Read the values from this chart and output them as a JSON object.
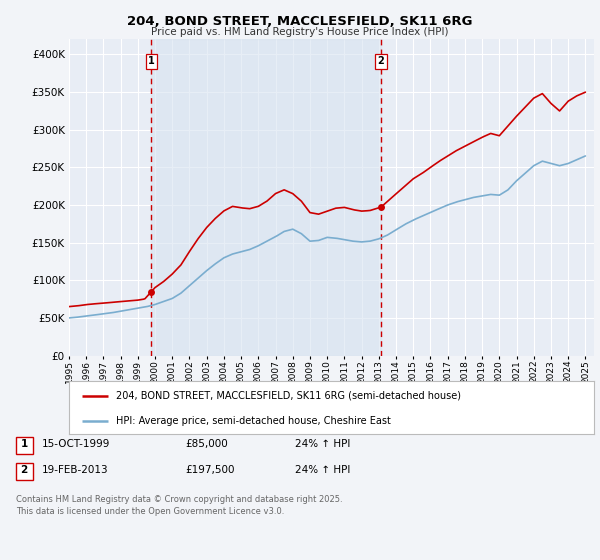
{
  "title": "204, BOND STREET, MACCLESFIELD, SK11 6RG",
  "subtitle": "Price paid vs. HM Land Registry's House Price Index (HPI)",
  "bg_color": "#f2f4f8",
  "plot_bg_color": "#e8edf5",
  "red_color": "#cc0000",
  "blue_color": "#7aadcf",
  "vline_color": "#cc0000",
  "grid_color": "#ffffff",
  "legend1": "204, BOND STREET, MACCLESFIELD, SK11 6RG (semi-detached house)",
  "legend2": "HPI: Average price, semi-detached house, Cheshire East",
  "sale1_date": "15-OCT-1999",
  "sale1_price": "£85,000",
  "sale1_hpi": "24% ↑ HPI",
  "sale1_x": 1999.79,
  "sale1_y": 85000,
  "sale2_date": "19-FEB-2013",
  "sale2_price": "£197,500",
  "sale2_hpi": "24% ↑ HPI",
  "sale2_x": 2013.13,
  "sale2_y": 197500,
  "footer1": "Contains HM Land Registry data © Crown copyright and database right 2025.",
  "footer2": "This data is licensed under the Open Government Licence v3.0.",
  "ylim": [
    0,
    420000
  ],
  "xlim_start": 1995.0,
  "xlim_end": 2025.5,
  "hpi_anchors": [
    [
      1995.0,
      50000
    ],
    [
      1995.5,
      51000
    ],
    [
      1996.0,
      52500
    ],
    [
      1996.5,
      54000
    ],
    [
      1997.0,
      55500
    ],
    [
      1997.5,
      57000
    ],
    [
      1998.0,
      59000
    ],
    [
      1998.5,
      61000
    ],
    [
      1999.0,
      63000
    ],
    [
      1999.5,
      65000
    ],
    [
      2000.0,
      68000
    ],
    [
      2000.5,
      72000
    ],
    [
      2001.0,
      76000
    ],
    [
      2001.5,
      83000
    ],
    [
      2002.0,
      93000
    ],
    [
      2002.5,
      103000
    ],
    [
      2003.0,
      113000
    ],
    [
      2003.5,
      122000
    ],
    [
      2004.0,
      130000
    ],
    [
      2004.5,
      135000
    ],
    [
      2005.0,
      138000
    ],
    [
      2005.5,
      141000
    ],
    [
      2006.0,
      146000
    ],
    [
      2006.5,
      152000
    ],
    [
      2007.0,
      158000
    ],
    [
      2007.5,
      165000
    ],
    [
      2008.0,
      168000
    ],
    [
      2008.5,
      162000
    ],
    [
      2009.0,
      152000
    ],
    [
      2009.5,
      153000
    ],
    [
      2010.0,
      157000
    ],
    [
      2010.5,
      156000
    ],
    [
      2011.0,
      154000
    ],
    [
      2011.5,
      152000
    ],
    [
      2012.0,
      151000
    ],
    [
      2012.5,
      152000
    ],
    [
      2013.0,
      155000
    ],
    [
      2013.5,
      160000
    ],
    [
      2014.0,
      167000
    ],
    [
      2014.5,
      174000
    ],
    [
      2015.0,
      180000
    ],
    [
      2015.5,
      185000
    ],
    [
      2016.0,
      190000
    ],
    [
      2016.5,
      195000
    ],
    [
      2017.0,
      200000
    ],
    [
      2017.5,
      204000
    ],
    [
      2018.0,
      207000
    ],
    [
      2018.5,
      210000
    ],
    [
      2019.0,
      212000
    ],
    [
      2019.5,
      214000
    ],
    [
      2020.0,
      213000
    ],
    [
      2020.5,
      220000
    ],
    [
      2021.0,
      232000
    ],
    [
      2021.5,
      242000
    ],
    [
      2022.0,
      252000
    ],
    [
      2022.5,
      258000
    ],
    [
      2023.0,
      255000
    ],
    [
      2023.5,
      252000
    ],
    [
      2024.0,
      255000
    ],
    [
      2024.5,
      260000
    ],
    [
      2025.0,
      265000
    ]
  ],
  "price_anchors": [
    [
      1995.0,
      65000
    ],
    [
      1995.5,
      66000
    ],
    [
      1996.0,
      67500
    ],
    [
      1996.5,
      68500
    ],
    [
      1997.0,
      69500
    ],
    [
      1997.5,
      70500
    ],
    [
      1998.0,
      71500
    ],
    [
      1998.5,
      72500
    ],
    [
      1999.0,
      73500
    ],
    [
      1999.4,
      75000
    ],
    [
      1999.79,
      85000
    ],
    [
      2000.0,
      90000
    ],
    [
      2000.5,
      98000
    ],
    [
      2001.0,
      108000
    ],
    [
      2001.5,
      120000
    ],
    [
      2002.0,
      138000
    ],
    [
      2002.5,
      155000
    ],
    [
      2003.0,
      170000
    ],
    [
      2003.5,
      182000
    ],
    [
      2004.0,
      192000
    ],
    [
      2004.5,
      198000
    ],
    [
      2005.0,
      196000
    ],
    [
      2005.5,
      195000
    ],
    [
      2006.0,
      198000
    ],
    [
      2006.5,
      205000
    ],
    [
      2007.0,
      215000
    ],
    [
      2007.5,
      220000
    ],
    [
      2008.0,
      215000
    ],
    [
      2008.5,
      205000
    ],
    [
      2009.0,
      190000
    ],
    [
      2009.5,
      188000
    ],
    [
      2010.0,
      192000
    ],
    [
      2010.5,
      196000
    ],
    [
      2011.0,
      197000
    ],
    [
      2011.5,
      194000
    ],
    [
      2012.0,
      192000
    ],
    [
      2012.5,
      193000
    ],
    [
      2013.13,
      197500
    ],
    [
      2013.5,
      205000
    ],
    [
      2014.0,
      215000
    ],
    [
      2014.5,
      225000
    ],
    [
      2015.0,
      235000
    ],
    [
      2015.5,
      242000
    ],
    [
      2016.0,
      250000
    ],
    [
      2016.5,
      258000
    ],
    [
      2017.0,
      265000
    ],
    [
      2017.5,
      272000
    ],
    [
      2018.0,
      278000
    ],
    [
      2018.5,
      284000
    ],
    [
      2019.0,
      290000
    ],
    [
      2019.5,
      295000
    ],
    [
      2020.0,
      292000
    ],
    [
      2020.5,
      305000
    ],
    [
      2021.0,
      318000
    ],
    [
      2021.5,
      330000
    ],
    [
      2022.0,
      342000
    ],
    [
      2022.5,
      348000
    ],
    [
      2023.0,
      335000
    ],
    [
      2023.5,
      325000
    ],
    [
      2024.0,
      338000
    ],
    [
      2024.5,
      345000
    ],
    [
      2025.0,
      350000
    ]
  ]
}
